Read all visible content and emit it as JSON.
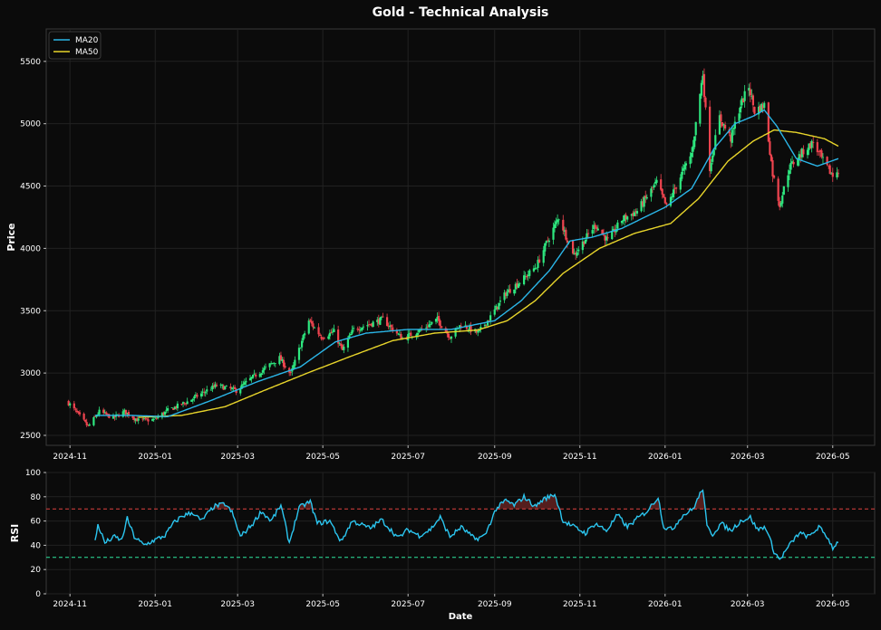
{
  "chart_data": [
    {
      "type": "line",
      "chart_kind": "candlestick with moving averages",
      "title": "Gold - Technical Analysis",
      "xlabel": "",
      "ylabel": "Price",
      "ylim": [
        2420,
        5760
      ],
      "yticks": [
        2500,
        3000,
        3500,
        4000,
        4500,
        5000,
        5500
      ],
      "xlim": [
        "2024-10-15",
        "2026-05-31"
      ],
      "xticks": [
        "2024-11",
        "2025-01",
        "2025-03",
        "2025-05",
        "2025-07",
        "2025-09",
        "2025-11",
        "2026-01",
        "2026-03",
        "2026-05"
      ],
      "grid": true,
      "legend": "top-left",
      "candle_colors": {
        "up": "#2ee87f",
        "down": "#f0444f"
      },
      "close_anchors": [
        [
          "2024-10-31",
          2760
        ],
        [
          "2024-11-06",
          2680
        ],
        [
          "2024-11-14",
          2570
        ],
        [
          "2024-11-22",
          2690
        ],
        [
          "2024-12-02",
          2640
        ],
        [
          "2024-12-10",
          2690
        ],
        [
          "2024-12-20",
          2620
        ],
        [
          "2024-12-31",
          2625
        ],
        [
          "2025-01-10",
          2700
        ],
        [
          "2025-01-24",
          2770
        ],
        [
          "2025-02-07",
          2860
        ],
        [
          "2025-02-14",
          2900
        ],
        [
          "2025-02-28",
          2860
        ],
        [
          "2025-03-14",
          2985
        ],
        [
          "2025-03-31",
          3120
        ],
        [
          "2025-04-08",
          2990
        ],
        [
          "2025-04-21",
          3420
        ],
        [
          "2025-04-30",
          3290
        ],
        [
          "2025-05-09",
          3330
        ],
        [
          "2025-05-15",
          3180
        ],
        [
          "2025-05-23",
          3350
        ],
        [
          "2025-06-13",
          3430
        ],
        [
          "2025-06-27",
          3275
        ],
        [
          "2025-07-11",
          3350
        ],
        [
          "2025-07-22",
          3430
        ],
        [
          "2025-07-31",
          3290
        ],
        [
          "2025-08-08",
          3390
        ],
        [
          "2025-08-20",
          3320
        ],
        [
          "2025-08-29",
          3450
        ],
        [
          "2025-09-09",
          3640
        ],
        [
          "2025-09-23",
          3770
        ],
        [
          "2025-10-01",
          3860
        ],
        [
          "2025-10-08",
          4040
        ],
        [
          "2025-10-17",
          4250
        ],
        [
          "2025-10-22",
          4100
        ],
        [
          "2025-10-28",
          3950
        ],
        [
          "2025-11-12",
          4190
        ],
        [
          "2025-11-21",
          4060
        ],
        [
          "2025-12-01",
          4230
        ],
        [
          "2025-12-12",
          4300
        ],
        [
          "2025-12-26",
          4530
        ],
        [
          "2026-01-02",
          4330
        ],
        [
          "2026-01-13",
          4600
        ],
        [
          "2026-01-20",
          4760
        ],
        [
          "2026-01-28",
          5400
        ],
        [
          "2026-02-02",
          4650
        ],
        [
          "2026-02-09",
          5050
        ],
        [
          "2026-02-17",
          4880
        ],
        [
          "2026-02-24",
          5150
        ],
        [
          "2026-03-02",
          5300
        ],
        [
          "2026-03-06",
          5100
        ],
        [
          "2026-03-13",
          5150
        ],
        [
          "2026-03-19",
          4600
        ],
        [
          "2026-03-24",
          4350
        ],
        [
          "2026-03-31",
          4650
        ],
        [
          "2026-04-10",
          4780
        ],
        [
          "2026-04-17",
          4850
        ],
        [
          "2026-04-24",
          4700
        ],
        [
          "2026-05-01",
          4580
        ],
        [
          "2026-05-05",
          4630
        ]
      ],
      "ma20_anchors": [
        [
          "2024-11-19",
          2660
        ],
        [
          "2024-12-15",
          2660
        ],
        [
          "2025-01-10",
          2650
        ],
        [
          "2025-02-10",
          2780
        ],
        [
          "2025-03-15",
          2930
        ],
        [
          "2025-04-15",
          3050
        ],
        [
          "2025-05-10",
          3250
        ],
        [
          "2025-06-01",
          3320
        ],
        [
          "2025-07-01",
          3350
        ],
        [
          "2025-08-01",
          3350
        ],
        [
          "2025-09-01",
          3420
        ],
        [
          "2025-09-20",
          3580
        ],
        [
          "2025-10-10",
          3820
        ],
        [
          "2025-10-25",
          4060
        ],
        [
          "2025-11-10",
          4090
        ],
        [
          "2025-12-01",
          4160
        ],
        [
          "2026-01-01",
          4330
        ],
        [
          "2026-01-20",
          4480
        ],
        [
          "2026-02-05",
          4800
        ],
        [
          "2026-02-20",
          5000
        ],
        [
          "2026-03-05",
          5060
        ],
        [
          "2026-03-13",
          5110
        ],
        [
          "2026-03-22",
          4980
        ],
        [
          "2026-04-05",
          4720
        ],
        [
          "2026-04-20",
          4660
        ],
        [
          "2026-05-05",
          4720
        ]
      ],
      "ma50_anchors": [
        [
          "2024-12-20",
          2645
        ],
        [
          "2025-01-20",
          2660
        ],
        [
          "2025-02-20",
          2730
        ],
        [
          "2025-03-20",
          2860
        ],
        [
          "2025-04-20",
          3000
        ],
        [
          "2025-05-20",
          3130
        ],
        [
          "2025-06-20",
          3260
        ],
        [
          "2025-07-20",
          3320
        ],
        [
          "2025-08-20",
          3345
        ],
        [
          "2025-09-10",
          3420
        ],
        [
          "2025-09-30",
          3580
        ],
        [
          "2025-10-20",
          3800
        ],
        [
          "2025-11-15",
          4000
        ],
        [
          "2025-12-10",
          4120
        ],
        [
          "2026-01-05",
          4200
        ],
        [
          "2026-01-25",
          4400
        ],
        [
          "2026-02-15",
          4700
        ],
        [
          "2026-03-05",
          4860
        ],
        [
          "2026-03-20",
          4950
        ],
        [
          "2026-04-05",
          4930
        ],
        [
          "2026-04-25",
          4880
        ],
        [
          "2026-05-05",
          4820
        ]
      ],
      "series": [
        {
          "name": "MA20",
          "color": "#2bb6e8"
        },
        {
          "name": "MA50",
          "color": "#e8d52b"
        }
      ]
    },
    {
      "type": "line",
      "title": "",
      "xlabel": "Date",
      "ylabel": "RSI",
      "ylim": [
        0,
        100
      ],
      "yticks": [
        0,
        20,
        40,
        60,
        80,
        100
      ],
      "xlim": [
        "2024-10-15",
        "2026-05-31"
      ],
      "xticks": [
        "2024-11",
        "2025-01",
        "2025-03",
        "2025-05",
        "2025-07",
        "2025-09",
        "2025-11",
        "2026-01",
        "2026-03",
        "2026-05"
      ],
      "grid": true,
      "overbought": 70,
      "oversold": 30,
      "overbought_color": "#e0413f",
      "oversold_color": "#2ee89f",
      "line_color": "#2bc6f0",
      "rsi_anchors": [
        [
          "2024-11-19",
          43
        ],
        [
          "2024-11-21",
          57
        ],
        [
          "2024-11-26",
          42
        ],
        [
          "2024-12-03",
          47
        ],
        [
          "2024-12-08",
          44
        ],
        [
          "2024-12-12",
          62
        ],
        [
          "2024-12-17",
          47
        ],
        [
          "2024-12-24",
          40
        ],
        [
          "2024-12-31",
          44
        ],
        [
          "2025-01-08",
          48
        ],
        [
          "2025-01-14",
          58
        ],
        [
          "2025-01-20",
          64
        ],
        [
          "2025-01-28",
          67
        ],
        [
          "2025-02-03",
          60
        ],
        [
          "2025-02-12",
          72
        ],
        [
          "2025-02-20",
          74
        ],
        [
          "2025-02-25",
          67
        ],
        [
          "2025-03-03",
          47
        ],
        [
          "2025-03-12",
          58
        ],
        [
          "2025-03-18",
          68
        ],
        [
          "2025-03-25",
          60
        ],
        [
          "2025-04-01",
          73
        ],
        [
          "2025-04-07",
          42
        ],
        [
          "2025-04-14",
          71
        ],
        [
          "2025-04-22",
          76
        ],
        [
          "2025-04-27",
          58
        ],
        [
          "2025-05-06",
          60
        ],
        [
          "2025-05-14",
          43
        ],
        [
          "2025-05-22",
          60
        ],
        [
          "2025-06-04",
          54
        ],
        [
          "2025-06-12",
          61
        ],
        [
          "2025-06-24",
          46
        ],
        [
          "2025-07-01",
          53
        ],
        [
          "2025-07-09",
          48
        ],
        [
          "2025-07-17",
          53
        ],
        [
          "2025-07-24",
          63
        ],
        [
          "2025-07-31",
          47
        ],
        [
          "2025-08-08",
          55
        ],
        [
          "2025-08-18",
          45
        ],
        [
          "2025-08-25",
          48
        ],
        [
          "2025-09-02",
          70
        ],
        [
          "2025-09-09",
          77
        ],
        [
          "2025-09-15",
          73
        ],
        [
          "2025-09-22",
          80
        ],
        [
          "2025-09-30",
          72
        ],
        [
          "2025-10-06",
          78
        ],
        [
          "2025-10-14",
          82
        ],
        [
          "2025-10-20",
          60
        ],
        [
          "2025-10-28",
          55
        ],
        [
          "2025-11-05",
          50
        ],
        [
          "2025-11-12",
          58
        ],
        [
          "2025-11-20",
          52
        ],
        [
          "2025-11-28",
          65
        ],
        [
          "2025-12-05",
          55
        ],
        [
          "2025-12-12",
          62
        ],
        [
          "2025-12-19",
          68
        ],
        [
          "2025-12-27",
          80
        ],
        [
          "2025-12-31",
          55
        ],
        [
          "2026-01-06",
          53
        ],
        [
          "2026-01-13",
          64
        ],
        [
          "2026-01-21",
          70
        ],
        [
          "2026-01-28",
          87
        ],
        [
          "2026-01-31",
          55
        ],
        [
          "2026-02-04",
          49
        ],
        [
          "2026-02-10",
          58
        ],
        [
          "2026-02-17",
          52
        ],
        [
          "2026-02-24",
          60
        ],
        [
          "2026-03-03",
          63
        ],
        [
          "2026-03-08",
          53
        ],
        [
          "2026-03-14",
          55
        ],
        [
          "2026-03-20",
          35
        ],
        [
          "2026-03-24",
          28
        ],
        [
          "2026-03-31",
          40
        ],
        [
          "2026-04-07",
          50
        ],
        [
          "2026-04-14",
          47
        ],
        [
          "2026-04-21",
          55
        ],
        [
          "2026-04-27",
          47
        ],
        [
          "2026-05-01",
          38
        ],
        [
          "2026-05-05",
          43
        ]
      ]
    }
  ]
}
